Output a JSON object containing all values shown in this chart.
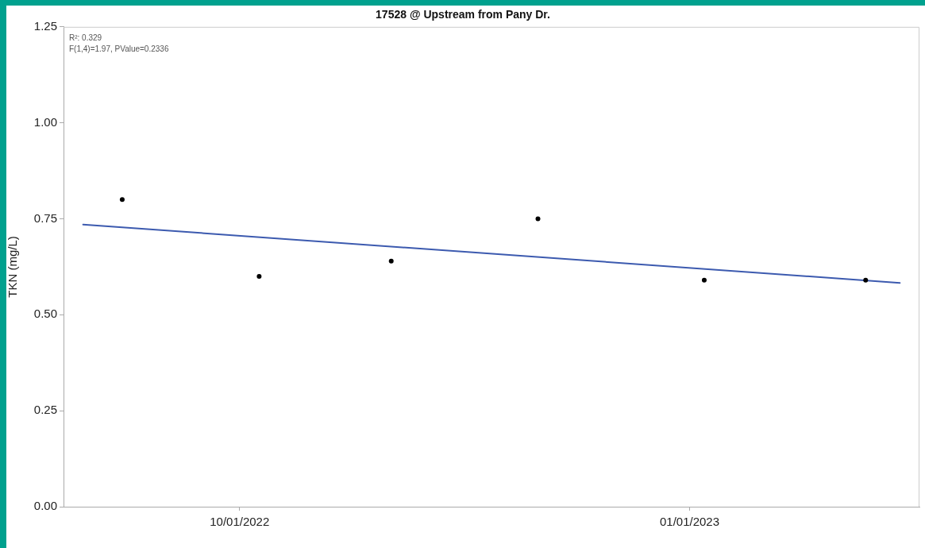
{
  "chart_data": {
    "type": "scatter",
    "title": "17528 @ Upstream from Pany Dr.",
    "ylabel": "TKN (mg/L)",
    "annotations": [
      "R²: 0.329",
      "F(1,4)=1.97, PValue=0.2336"
    ],
    "xlim": [
      "2022-08-26",
      "2023-02-17"
    ],
    "xticks": [
      {
        "value": "2022-10-01",
        "label": "10/01/2022"
      },
      {
        "value": "2023-01-01",
        "label": "01/01/2023"
      }
    ],
    "ylim": [
      0,
      1.25
    ],
    "yticks": [
      {
        "value": 0,
        "label": "0.00"
      },
      {
        "value": 0.25,
        "label": "0.25"
      },
      {
        "value": 0.5,
        "label": "0.50"
      },
      {
        "value": 0.75,
        "label": "0.75"
      },
      {
        "value": 1,
        "label": "1.00"
      },
      {
        "value": 1.25,
        "label": "1.25"
      }
    ],
    "grid": false,
    "legend": false,
    "series": [
      {
        "color": "#000000",
        "marker": "circle",
        "x": [
          "2022-09-07",
          "2022-10-05",
          "2022-11-01",
          "2022-12-01",
          "2023-01-04",
          "2023-02-06"
        ],
        "values": [
          0.8,
          0.6,
          0.64,
          0.75,
          0.59,
          0.59
        ]
      },
      {
        "type": "line",
        "color": "#3c5aaf",
        "marker": "none",
        "line_style": "solid",
        "x": [
          "2022-08-30",
          "2023-02-13"
        ],
        "values": [
          0.735,
          0.583
        ]
      }
    ]
  }
}
